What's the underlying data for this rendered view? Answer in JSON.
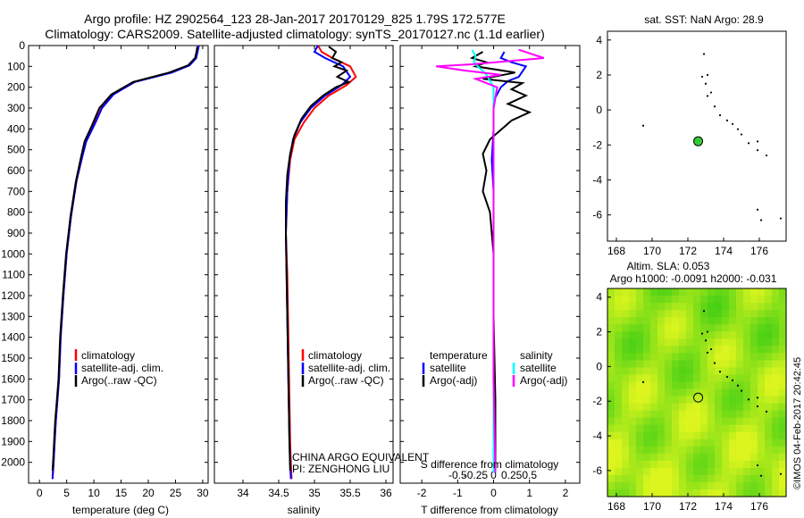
{
  "header": {
    "title_line1": "Argo profile: HZ 2902564_123 28-Jan-2017 20170129_825 1.79S 172.577E",
    "title_line2": "Climatology: CARS2009. Satellite-adjusted climatology: synTS_20170127.nc (1.1d earlier)"
  },
  "colors": {
    "climatology": "#ff0000",
    "satellite": "#0000ff",
    "argo": "#000000",
    "sal_satellite": "#00ffff",
    "sal_argo": "#ff00ff",
    "map_ocean": "#7ee81c",
    "marker": "#33cc33"
  },
  "chart_data": [
    {
      "type": "line",
      "id": "temperature",
      "xlabel": "temperature (deg C)",
      "ylabel": "",
      "xlim": [
        -2,
        31
      ],
      "ylim": [
        2100,
        0
      ],
      "xticks": [
        "0",
        "5",
        "10",
        "15",
        "20",
        "25",
        "30"
      ],
      "yticks": [
        "0",
        "100",
        "200",
        "300",
        "400",
        "500",
        "600",
        "700",
        "800",
        "900",
        "1000",
        "1100",
        "1200",
        "1300",
        "1400",
        "1500",
        "1600",
        "1700",
        "1800",
        "1900",
        "2000"
      ],
      "legend": [
        "climatology",
        "satellite-adj. clim.",
        "Argo(..raw -QC)"
      ],
      "series": [
        {
          "name": "climatology",
          "color": "#ff0000",
          "x": [
            29.2,
            29.0,
            28.7,
            27.4,
            24.0,
            17.5,
            13.5,
            11.4,
            10.0,
            8.5,
            7.8,
            6.8,
            5.8,
            5.0,
            4.4,
            3.9,
            3.6,
            3.3,
            3.0,
            2.8,
            2.6,
            2.5,
            2.4
          ],
          "y": [
            0,
            25,
            60,
            95,
            130,
            175,
            235,
            300,
            380,
            460,
            540,
            650,
            820,
            1000,
            1200,
            1400,
            1600,
            1700,
            1800,
            1900,
            2000,
            2040,
            2080
          ]
        },
        {
          "name": "satellite-adj. clim.",
          "color": "#0000ff",
          "x": [
            29.3,
            29.1,
            28.8,
            27.6,
            24.3,
            17.5,
            13.6,
            11.5,
            10.1,
            8.6,
            7.8,
            6.8,
            5.8,
            5.0,
            4.4,
            3.9,
            3.6,
            3.3,
            3.0,
            2.8,
            2.6,
            2.5,
            2.4
          ],
          "y": [
            0,
            25,
            60,
            95,
            130,
            175,
            235,
            300,
            380,
            460,
            540,
            650,
            820,
            1000,
            1200,
            1400,
            1600,
            1700,
            1800,
            1900,
            2000,
            2040,
            2080
          ]
        },
        {
          "name": "Argo(..raw -QC)",
          "color": "#000000",
          "x": [
            29.0,
            28.9,
            28.6,
            27.3,
            23.8,
            17.2,
            13.2,
            11.0,
            9.7,
            8.3,
            7.6,
            6.7,
            5.7,
            4.9,
            4.3,
            3.8,
            3.5,
            3.2,
            2.9,
            2.7,
            2.5,
            2.4
          ],
          "y": [
            5,
            25,
            60,
            95,
            130,
            175,
            235,
            300,
            380,
            460,
            540,
            650,
            820,
            1000,
            1200,
            1400,
            1600,
            1700,
            1800,
            1900,
            2000,
            2040
          ]
        }
      ]
    },
    {
      "type": "line",
      "id": "salinity",
      "xlabel": "salinity",
      "xlim": [
        33.6,
        36.1
      ],
      "ylim": [
        2100,
        0
      ],
      "xticks": [
        "34",
        "34.5",
        "35",
        "35.5",
        "36"
      ],
      "legend": [
        "climatology",
        "satellite-adj. clim.",
        "Argo(..raw -QC)"
      ],
      "annotation_line1": "CHINA ARGO EQUIVALENT",
      "annotation_line2": "PI: ZENGHONG LIU",
      "series": [
        {
          "name": "climatology",
          "color": "#ff0000",
          "x": [
            35.05,
            35.1,
            35.25,
            35.5,
            35.58,
            35.45,
            35.2,
            35.0,
            34.85,
            34.72,
            34.66,
            34.62,
            34.6,
            34.62,
            34.63,
            34.64,
            34.65,
            34.66,
            34.67,
            34.68
          ],
          "y": [
            0,
            30,
            60,
            100,
            150,
            190,
            240,
            300,
            370,
            450,
            550,
            700,
            900,
            1100,
            1300,
            1500,
            1700,
            1900,
            2000,
            2080
          ]
        },
        {
          "name": "satellite-adj. clim.",
          "color": "#0000ff",
          "x": [
            35.05,
            35.0,
            35.15,
            35.4,
            35.5,
            35.38,
            35.15,
            34.95,
            34.8,
            34.7,
            34.65,
            34.62,
            34.6,
            34.61,
            34.62,
            34.63,
            34.64,
            34.65,
            34.66,
            34.67
          ],
          "y": [
            0,
            30,
            60,
            100,
            150,
            190,
            240,
            300,
            370,
            450,
            550,
            700,
            900,
            1100,
            1300,
            1500,
            1700,
            1900,
            2000,
            2080
          ]
        },
        {
          "name": "Argo(..raw -QC)",
          "color": "#000000",
          "x": [
            35.2,
            35.3,
            35.25,
            35.38,
            35.28,
            35.45,
            35.32,
            35.48,
            35.3,
            35.12,
            34.95,
            34.82,
            34.72,
            34.66,
            34.62,
            34.6,
            34.6,
            34.61,
            34.62,
            34.63,
            34.64,
            34.65,
            34.66
          ],
          "y": [
            5,
            30,
            60,
            80,
            100,
            120,
            150,
            175,
            200,
            240,
            290,
            350,
            430,
            520,
            620,
            750,
            900,
            1100,
            1300,
            1500,
            1700,
            1900,
            2040
          ]
        }
      ]
    },
    {
      "type": "line",
      "id": "differences",
      "xlabel": "T difference from climatology",
      "xlabel_top": "S difference from climatology",
      "xlim": [
        -2.6,
        2.4
      ],
      "ylim": [
        2100,
        0
      ],
      "xticks": [
        "-2",
        "-1",
        "0",
        "1",
        "2"
      ],
      "xticks_top": [
        "-0.5",
        "-0.25",
        "0",
        "0.25",
        "0.5"
      ],
      "legend_titles": [
        "temperature",
        "salinity"
      ],
      "legend": [
        "satellite",
        "Argo(-adj)",
        "satellite",
        "Argo(-adj)"
      ],
      "series": [
        {
          "name": "temperature satellite",
          "color": "#0000ff",
          "x": [
            0.3,
            0.2,
            0.5,
            0.9,
            0.7,
            0.4,
            0.2,
            0.05,
            0.0,
            0.0,
            -0.05,
            0.0,
            0.0,
            0.0,
            0.0,
            0.0,
            0.0,
            0.0,
            0.0
          ],
          "y": [
            30,
            60,
            80,
            100,
            150,
            170,
            200,
            250,
            300,
            400,
            550,
            700,
            900,
            1100,
            1300,
            1500,
            1700,
            1900,
            2050
          ]
        },
        {
          "name": "temperature Argo(-adj)",
          "color": "#000000",
          "x": [
            -0.3,
            -0.6,
            -0.2,
            -0.5,
            0.6,
            -0.3,
            0.8,
            0.5,
            0.9,
            0.4,
            1.0,
            0.5,
            -0.1,
            -0.3,
            -0.2,
            -0.3,
            -0.1,
            0.0,
            0.0,
            0.05,
            0.05
          ],
          "y": [
            30,
            60,
            80,
            100,
            130,
            160,
            180,
            210,
            240,
            280,
            320,
            360,
            450,
            520,
            600,
            700,
            800,
            1000,
            1300,
            1700,
            2050
          ]
        },
        {
          "name": "salinity satellite",
          "color": "#00ffff",
          "x": [
            -0.6,
            -0.5,
            -0.55,
            -0.2,
            0.0,
            0.0,
            0.0,
            0.0,
            0.0,
            0.0,
            0.0,
            0.0,
            0.0
          ],
          "y": [
            20,
            50,
            80,
            140,
            200,
            300,
            500,
            700,
            900,
            1200,
            1500,
            1800,
            2050
          ]
        },
        {
          "name": "salinity Argo(-adj)",
          "color": "#ff00ff",
          "x": [
            0.7,
            1.4,
            -0.6,
            -1.6,
            -0.8,
            0.2,
            -0.5,
            0.1,
            0.0,
            0.0,
            0.0,
            0.0,
            0.05
          ],
          "y": [
            20,
            60,
            90,
            100,
            120,
            140,
            160,
            200,
            300,
            500,
            1000,
            1600,
            2050
          ]
        }
      ]
    },
    {
      "type": "scatter",
      "id": "sst_map",
      "title": "sat. SST: NaN Argo: 28.9",
      "xlim": [
        167.5,
        177.5
      ],
      "ylim": [
        -7.5,
        4.5
      ],
      "xticks": [
        "168",
        "170",
        "172",
        "174",
        "176"
      ],
      "yticks": [
        "4",
        "2",
        "0",
        "-2",
        "-4",
        "-6"
      ],
      "argo_position": {
        "x": 172.577,
        "y": -1.79
      },
      "islands": [
        [
          172.9,
          3.2
        ],
        [
          172.8,
          1.9
        ],
        [
          173.1,
          2.0
        ],
        [
          173.0,
          1.5
        ],
        [
          173.1,
          0.8
        ],
        [
          173.5,
          0.2
        ],
        [
          173.8,
          -0.3
        ],
        [
          174.2,
          -0.6
        ],
        [
          174.5,
          -0.8
        ],
        [
          174.8,
          -1.1
        ],
        [
          175.0,
          -1.4
        ],
        [
          175.4,
          -1.9
        ],
        [
          175.9,
          -1.8
        ],
        [
          176.4,
          -2.6
        ],
        [
          169.5,
          -0.9
        ],
        [
          175.9,
          -5.7
        ],
        [
          176.1,
          -6.3
        ],
        [
          177.2,
          -6.2
        ],
        [
          173.3,
          1.0
        ],
        [
          175.9,
          -2.3
        ]
      ]
    },
    {
      "type": "heatmap",
      "id": "sla_map",
      "title_line1": "Altim. SLA: 0.053",
      "title_line2": "Argo h1000: -0.0091 h2000: -0.031",
      "xlim": [
        167.5,
        177.5
      ],
      "ylim": [
        -7.5,
        4.5
      ],
      "xticks": [
        "168",
        "170",
        "172",
        "174",
        "176"
      ],
      "yticks": [
        "4",
        "2",
        "0",
        "-2",
        "-4",
        "-6"
      ],
      "argo_position": {
        "x": 172.577,
        "y": -1.79
      }
    }
  ],
  "footer": {
    "credit": "©IMOS 04-Feb-2017 20:42:45"
  }
}
